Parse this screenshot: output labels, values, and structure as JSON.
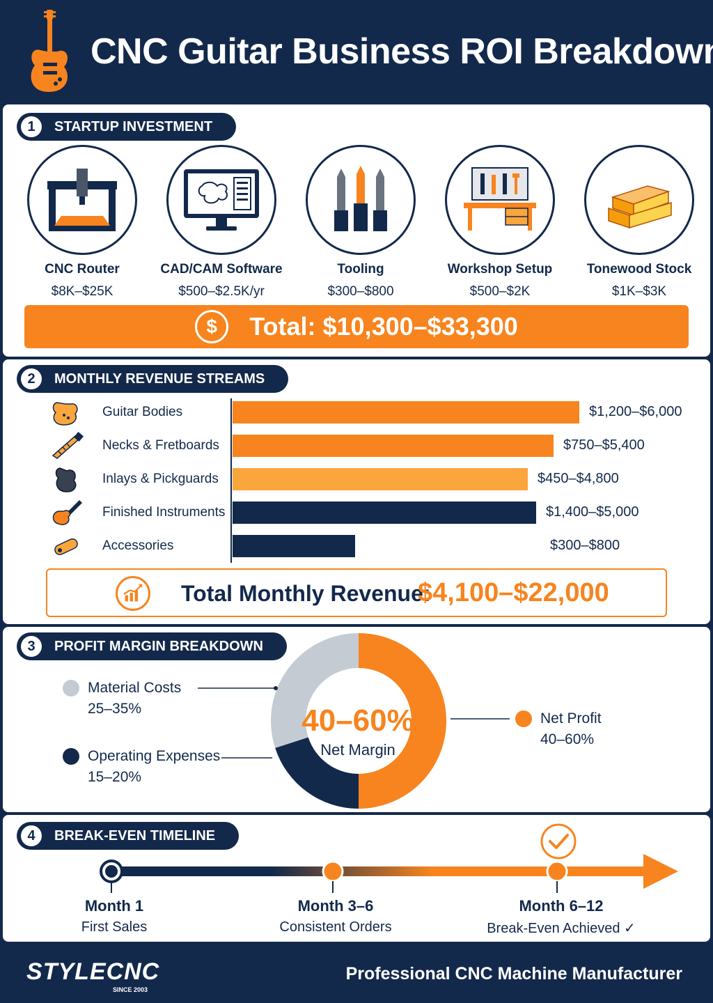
{
  "header": {
    "title": "CNC Guitar Business ROI Breakdown",
    "icon": "guitar-icon"
  },
  "startup": {
    "number": "1",
    "heading": "STARTUP INVESTMENT",
    "items": [
      {
        "name": "CNC Router",
        "cost": "$8K–$25K",
        "icon": "cnc-router-icon"
      },
      {
        "name": "CAD/CAM Software",
        "cost": "$500–$2.5K/yr",
        "icon": "monitor-icon"
      },
      {
        "name": "Tooling",
        "cost": "$300–$800",
        "icon": "drill-bits-icon"
      },
      {
        "name": "Workshop Setup",
        "cost": "$500–$2K",
        "icon": "workbench-icon"
      },
      {
        "name": "Tonewood Stock",
        "cost": "$1K–$3K",
        "icon": "wood-planks-icon"
      }
    ],
    "total": "Total: $10,300–$33,300",
    "total_icon_glyph": "$"
  },
  "revenue": {
    "number": "2",
    "heading": "MONTHLY REVENUE STREAMS",
    "streams": [
      {
        "label": "Guitar Bodies",
        "range": "$1,200–$6,000",
        "min": 1200,
        "max": 6000,
        "color": "#f7841e",
        "icon": "guitar-body-icon"
      },
      {
        "label": "Necks & Fretboards",
        "range": "$750–$5,400",
        "min": 750,
        "max": 5400,
        "color": "#f7841e",
        "icon": "guitar-neck-icon"
      },
      {
        "label": "Inlays & Pickguards",
        "range": "$450–$4,800",
        "min": 450,
        "max": 4800,
        "color": "#fba53d",
        "icon": "pickguard-icon"
      },
      {
        "label": "Finished Instruments",
        "range": "$1,400–$5,000",
        "min": 1400,
        "max": 5000,
        "color": "#13294b",
        "icon": "electric-guitar-icon"
      },
      {
        "label": "Accessories",
        "range": "$300–$800",
        "min": 300,
        "max": 800,
        "color": "#13294b",
        "icon": "guitar-strap-icon"
      }
    ],
    "total_label": "Total Monthly Revenue:",
    "total_amount": "$4,100–$22,000"
  },
  "profit": {
    "number": "3",
    "heading": "PROFIT MARGIN BREAKDOWN",
    "center_value": "40–60%",
    "center_label": "Net Margin",
    "segments": [
      {
        "name": "Net Profit",
        "value": "40–60%",
        "share": 50,
        "color": "#f7841e"
      },
      {
        "name": "Operating Expenses",
        "value": "15–20%",
        "share": 20,
        "color": "#13294b"
      },
      {
        "name": "Material Costs",
        "value": "25–35%",
        "share": 30,
        "color": "#c5cbd3"
      }
    ]
  },
  "timeline": {
    "number": "4",
    "heading": "BREAK-EVEN TIMELINE",
    "milestones": [
      {
        "title": "Month 1",
        "desc": "First Sales"
      },
      {
        "title": "Month 3–6",
        "desc": "Consistent Orders"
      },
      {
        "title": "Month 6–12",
        "desc": "Break-Even Achieved ✓"
      }
    ]
  },
  "footer": {
    "brand": "STYLECNC",
    "since": "SINCE 2003",
    "tagline": "Professional CNC Machine Manufacturer"
  },
  "colors": {
    "navy": "#13294b",
    "orange": "#f7841e",
    "light_orange": "#fba53d",
    "gray": "#c5cbd3"
  }
}
